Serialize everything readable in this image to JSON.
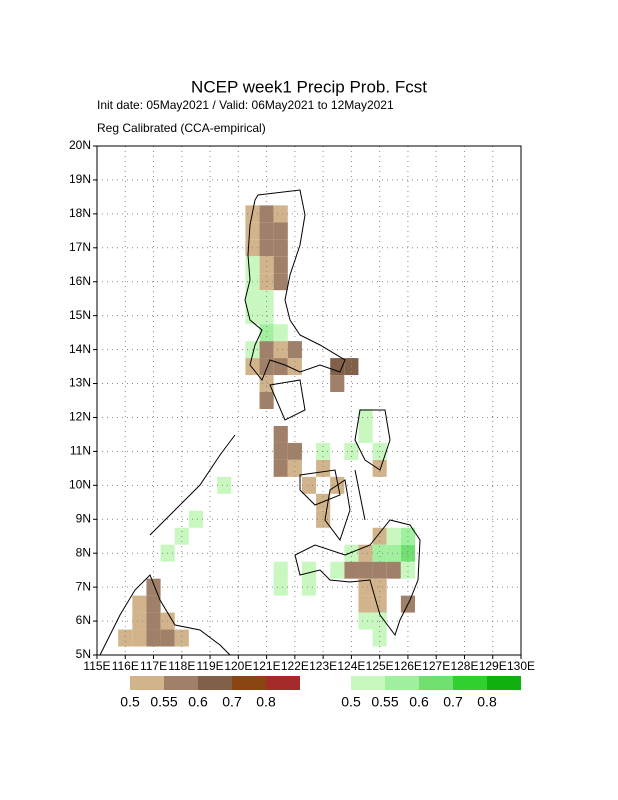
{
  "chart_data": {
    "type": "gridmap",
    "title": "NCEP week1 Precip Prob. Fcst",
    "subtitle": "Init date: 05May2021 / Valid: 06May2021 to 12May2021",
    "method": "Reg Calibrated (CCA-empirical)",
    "xlim": [
      115,
      130
    ],
    "ylim": [
      5,
      20
    ],
    "xticks": [
      {
        "value": 115,
        "label": "115E"
      },
      {
        "value": 116,
        "label": "116E"
      },
      {
        "value": 117,
        "label": "117E"
      },
      {
        "value": 118,
        "label": "118E"
      },
      {
        "value": 119,
        "label": "119E"
      },
      {
        "value": 120,
        "label": "120E"
      },
      {
        "value": 121,
        "label": "121E"
      },
      {
        "value": 122,
        "label": "122E"
      },
      {
        "value": 123,
        "label": "123E"
      },
      {
        "value": 124,
        "label": "124E"
      },
      {
        "value": 125,
        "label": "125E"
      },
      {
        "value": 126,
        "label": "126E"
      },
      {
        "value": 127,
        "label": "127E"
      },
      {
        "value": 128,
        "label": "128E"
      },
      {
        "value": 129,
        "label": "129E"
      },
      {
        "value": 130,
        "label": "130E"
      }
    ],
    "yticks": [
      {
        "value": 5,
        "label": "5N"
      },
      {
        "value": 6,
        "label": "6N"
      },
      {
        "value": 7,
        "label": "7N"
      },
      {
        "value": 8,
        "label": "8N"
      },
      {
        "value": 9,
        "label": "9N"
      },
      {
        "value": 10,
        "label": "10N"
      },
      {
        "value": 11,
        "label": "11N"
      },
      {
        "value": 12,
        "label": "12N"
      },
      {
        "value": 13,
        "label": "13N"
      },
      {
        "value": 14,
        "label": "14N"
      },
      {
        "value": 15,
        "label": "15N"
      },
      {
        "value": 16,
        "label": "16N"
      },
      {
        "value": 17,
        "label": "17N"
      },
      {
        "value": 18,
        "label": "18N"
      },
      {
        "value": 19,
        "label": "19N"
      },
      {
        "value": 20,
        "label": "20N"
      }
    ],
    "grid": true,
    "colorbar_below": {
      "levels": [
        0.5,
        0.55,
        0.6,
        0.7,
        0.8
      ],
      "colors": [
        "#d2b48c",
        "#a08068",
        "#806048",
        "#8b4513",
        "#a52a2a"
      ]
    },
    "colorbar_above": {
      "levels": [
        0.5,
        0.55,
        0.6,
        0.7,
        0.8
      ],
      "colors": [
        "#c8f8c0",
        "#a0f0a0",
        "#70e070",
        "#30d030",
        "#10b010"
      ]
    },
    "below_cells": [
      [
        120.5,
        18.0,
        0.5
      ],
      [
        121.0,
        18.0,
        0.55
      ],
      [
        121.5,
        18.0,
        0.5
      ],
      [
        120.5,
        17.5,
        0.5
      ],
      [
        121.0,
        17.5,
        0.55
      ],
      [
        121.5,
        17.5,
        0.55
      ],
      [
        120.5,
        17.0,
        0.5
      ],
      [
        121.0,
        17.0,
        0.55
      ],
      [
        121.5,
        17.0,
        0.55
      ],
      [
        121.0,
        16.5,
        0.5
      ],
      [
        121.5,
        16.5,
        0.55
      ],
      [
        121.0,
        16.0,
        0.5
      ],
      [
        121.5,
        16.0,
        0.55
      ],
      [
        121.0,
        14.0,
        0.55
      ],
      [
        121.5,
        14.0,
        0.5
      ],
      [
        122.0,
        14.0,
        0.55
      ],
      [
        120.5,
        13.5,
        0.5
      ],
      [
        121.0,
        13.5,
        0.55
      ],
      [
        121.5,
        13.5,
        0.55
      ],
      [
        122.0,
        13.5,
        0.5
      ],
      [
        121.0,
        13.0,
        0.5
      ],
      [
        121.0,
        12.5,
        0.55
      ],
      [
        123.5,
        13.5,
        0.6
      ],
      [
        124.0,
        13.5,
        0.6
      ],
      [
        123.5,
        13.0,
        0.55
      ],
      [
        121.5,
        11.5,
        0.55
      ],
      [
        121.5,
        11.0,
        0.55
      ],
      [
        122.0,
        11.0,
        0.55
      ],
      [
        121.5,
        10.5,
        0.55
      ],
      [
        122.0,
        10.5,
        0.5
      ],
      [
        123.0,
        10.5,
        0.5
      ],
      [
        122.5,
        10.0,
        0.5
      ],
      [
        123.5,
        10.0,
        0.5
      ],
      [
        123.0,
        9.5,
        0.5
      ],
      [
        123.0,
        9.0,
        0.5
      ],
      [
        125.0,
        10.5,
        0.5
      ],
      [
        124.5,
        8.0,
        0.5
      ],
      [
        125.0,
        8.5,
        0.5
      ],
      [
        124.0,
        7.5,
        0.55
      ],
      [
        124.5,
        7.5,
        0.55
      ],
      [
        125.0,
        7.5,
        0.55
      ],
      [
        125.5,
        7.5,
        0.55
      ],
      [
        124.5,
        7.0,
        0.5
      ],
      [
        125.0,
        7.0,
        0.5
      ],
      [
        124.5,
        6.5,
        0.5
      ],
      [
        125.0,
        6.5,
        0.5
      ],
      [
        126.0,
        6.5,
        0.55
      ],
      [
        117.0,
        7.0,
        0.55
      ],
      [
        116.5,
        6.5,
        0.5
      ],
      [
        117.0,
        6.5,
        0.55
      ],
      [
        116.5,
        6.0,
        0.5
      ],
      [
        117.0,
        6.0,
        0.55
      ],
      [
        117.5,
        6.0,
        0.5
      ],
      [
        116.0,
        5.5,
        0.5
      ],
      [
        116.5,
        5.5,
        0.5
      ],
      [
        117.0,
        5.5,
        0.55
      ],
      [
        117.5,
        5.5,
        0.55
      ],
      [
        118.0,
        5.5,
        0.5
      ]
    ],
    "above_cells": [
      [
        120.5,
        16.5,
        0.5
      ],
      [
        120.5,
        16.0,
        0.5
      ],
      [
        120.5,
        15.5,
        0.5
      ],
      [
        121.0,
        15.5,
        0.5
      ],
      [
        120.5,
        15.0,
        0.5
      ],
      [
        121.0,
        15.0,
        0.5
      ],
      [
        121.0,
        14.5,
        0.55
      ],
      [
        121.5,
        14.5,
        0.5
      ],
      [
        120.5,
        14.0,
        0.5
      ],
      [
        124.5,
        12.0,
        0.5
      ],
      [
        124.5,
        11.5,
        0.5
      ],
      [
        124.0,
        11.0,
        0.5
      ],
      [
        125.0,
        11.0,
        0.5
      ],
      [
        123.0,
        11.0,
        0.5
      ],
      [
        125.0,
        8.0,
        0.55
      ],
      [
        125.5,
        8.0,
        0.55
      ],
      [
        126.0,
        8.0,
        0.6
      ],
      [
        125.5,
        8.5,
        0.5
      ],
      [
        126.0,
        8.5,
        0.55
      ],
      [
        124.0,
        8.0,
        0.5
      ],
      [
        123.5,
        7.5,
        0.5
      ],
      [
        126.0,
        7.5,
        0.5
      ],
      [
        122.5,
        7.5,
        0.5
      ],
      [
        122.5,
        7.0,
        0.5
      ],
      [
        121.5,
        7.5,
        0.5
      ],
      [
        121.5,
        7.0,
        0.5
      ],
      [
        124.5,
        6.0,
        0.5
      ],
      [
        125.0,
        6.0,
        0.5
      ],
      [
        125.0,
        5.5,
        0.5
      ],
      [
        117.5,
        8.0,
        0.5
      ],
      [
        118.0,
        8.5,
        0.5
      ],
      [
        118.5,
        9.0,
        0.5
      ],
      [
        119.5,
        10.0,
        0.5
      ]
    ]
  }
}
